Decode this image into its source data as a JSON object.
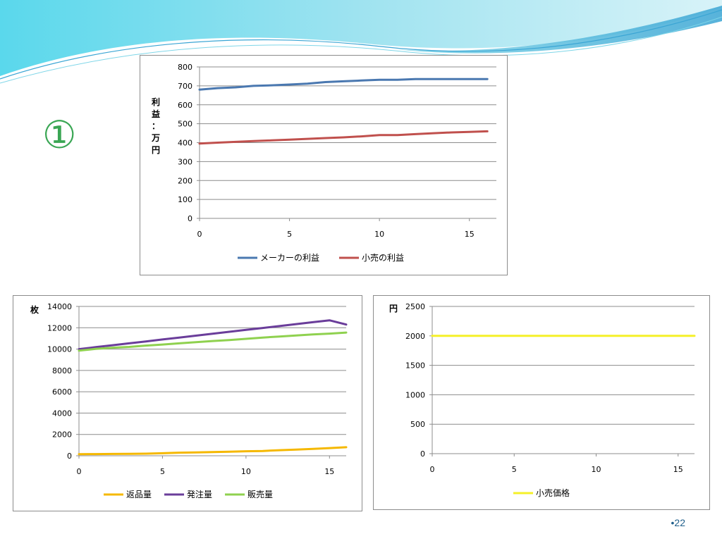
{
  "slide": {
    "marker": "①",
    "page_number": "•22"
  },
  "colors": {
    "maker_profit": "#4a78b0",
    "retail_profit": "#c0504d",
    "returns": "#f5b800",
    "orders": "#6a3d9a",
    "sales": "#8fd14f",
    "retail_price": "#f5f028",
    "grid": "#8c8c8c"
  },
  "chart_data": [
    {
      "id": "profit",
      "type": "line",
      "title": "",
      "xlabel": "",
      "ylabel": "利益：万円",
      "xlim": [
        0,
        16.5
      ],
      "ylim": [
        0,
        800
      ],
      "x_ticks": [
        0,
        5,
        10,
        15
      ],
      "y_ticks": [
        0,
        100,
        200,
        300,
        400,
        500,
        600,
        700,
        800
      ],
      "grid": true,
      "legend": "bottom",
      "x": [
        0,
        1,
        2,
        3,
        4,
        5,
        6,
        7,
        8,
        9,
        10,
        11,
        12,
        13,
        14,
        15,
        16
      ],
      "series": [
        {
          "name": "メーカーの利益",
          "color_key": "maker_profit",
          "values": [
            680,
            688,
            692,
            700,
            703,
            707,
            712,
            720,
            724,
            728,
            732,
            732,
            736,
            736,
            736,
            736,
            736
          ]
        },
        {
          "name": "小売の利益",
          "color_key": "retail_profit",
          "values": [
            395,
            400,
            404,
            408,
            412,
            416,
            420,
            424,
            428,
            433,
            440,
            440,
            445,
            450,
            454,
            457,
            460
          ]
        }
      ]
    },
    {
      "id": "quantities",
      "type": "line",
      "title": "",
      "xlabel": "",
      "ylabel": "枚",
      "xlim": [
        0,
        16
      ],
      "ylim": [
        0,
        14000
      ],
      "x_ticks": [
        0,
        5,
        10,
        15
      ],
      "y_ticks": [
        0,
        2000,
        4000,
        6000,
        8000,
        10000,
        12000,
        14000
      ],
      "grid": true,
      "legend": "bottom",
      "x": [
        0,
        1,
        2,
        3,
        4,
        5,
        6,
        7,
        8,
        9,
        10,
        11,
        12,
        13,
        14,
        15,
        16
      ],
      "series": [
        {
          "name": "返品量",
          "color_key": "returns",
          "values": [
            150,
            160,
            170,
            180,
            200,
            240,
            290,
            320,
            350,
            380,
            420,
            450,
            520,
            580,
            640,
            720,
            800
          ]
        },
        {
          "name": "発注量",
          "color_key": "orders",
          "values": [
            10000,
            10180,
            10360,
            10540,
            10720,
            10900,
            11080,
            11260,
            11440,
            11620,
            11800,
            11980,
            12160,
            12340,
            12520,
            12700,
            12300
          ]
        },
        {
          "name": "販売量",
          "color_key": "sales",
          "values": [
            9850,
            10020,
            10130,
            10200,
            10330,
            10430,
            10540,
            10650,
            10760,
            10850,
            10960,
            11080,
            11180,
            11280,
            11380,
            11450,
            11550
          ]
        }
      ]
    },
    {
      "id": "price",
      "type": "line",
      "title": "",
      "xlabel": "",
      "ylabel": "円",
      "xlim": [
        0,
        16
      ],
      "ylim": [
        0,
        2500
      ],
      "x_ticks": [
        0,
        5,
        10,
        15
      ],
      "y_ticks": [
        0,
        500,
        1000,
        1500,
        2000,
        2500
      ],
      "grid": true,
      "legend": "bottom",
      "x": [
        0,
        1,
        2,
        3,
        4,
        5,
        6,
        7,
        8,
        9,
        10,
        11,
        12,
        13,
        14,
        15,
        16
      ],
      "series": [
        {
          "name": "小売価格",
          "color_key": "retail_price",
          "values": [
            2000,
            2000,
            2000,
            2000,
            2000,
            2000,
            2000,
            2000,
            2000,
            2000,
            2000,
            2000,
            2000,
            2000,
            2000,
            2000,
            2000
          ]
        }
      ]
    }
  ]
}
